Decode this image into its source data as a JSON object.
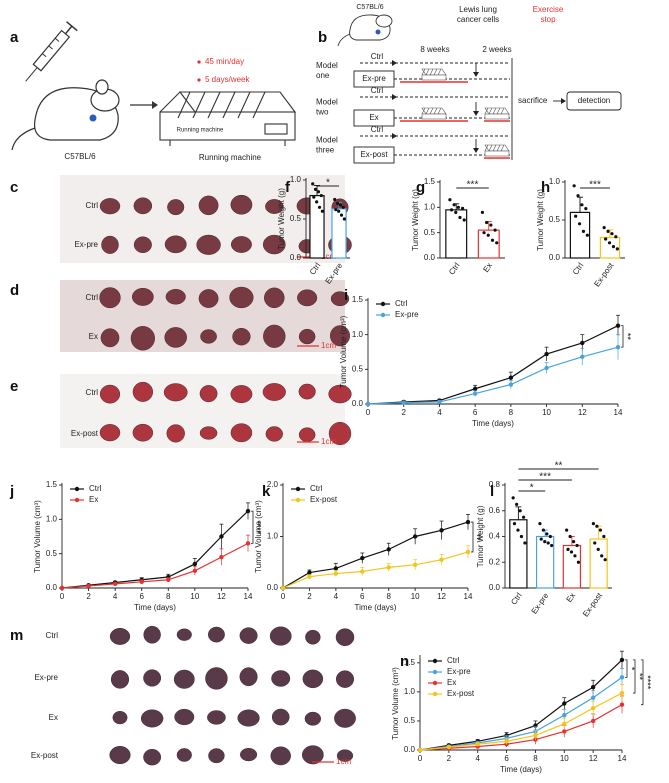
{
  "panel_a": {
    "letter": "a",
    "bullets": [
      "45 min/day",
      "5 days/week"
    ],
    "strain": "C57BL/6",
    "machine_label": "Running machine",
    "caption": "Running machine"
  },
  "panel_b": {
    "letter": "b",
    "strain": "C57BL/6",
    "injection": [
      "Lewis lung",
      "cancer cells"
    ],
    "stop": [
      "Exercise",
      "stop"
    ],
    "durations": [
      "8 weeks",
      "2 weeks"
    ],
    "models": [
      {
        "name": [
          "Model",
          "one"
        ],
        "control": "Ctrl",
        "group": "Ex-pre"
      },
      {
        "name": [
          "Model",
          "two"
        ],
        "control": "Ctrl",
        "group": "Ex"
      },
      {
        "name": [
          "Model",
          "three"
        ],
        "control": "Ctrl",
        "group": "Ex-post"
      }
    ],
    "end": "sacrifice",
    "result": "detection"
  },
  "photos": [
    {
      "letter": "c",
      "rows": [
        "Ctrl",
        "Ex-pre"
      ],
      "scale": "1cm"
    },
    {
      "letter": "d",
      "rows": [
        "Ctrl",
        "Ex"
      ],
      "scale": "1cm"
    },
    {
      "letter": "e",
      "rows": [
        "Ctrl",
        "Ex-post"
      ],
      "scale": "1cm"
    },
    {
      "letter": "m",
      "rows": [
        "Ctrl",
        "Ex-pre",
        "Ex",
        "Ex-post"
      ],
      "scale": "1cm"
    }
  ],
  "chart_data": [
    {
      "type": "bar",
      "letter": "f",
      "ylabel": "Tumor Weight (g)",
      "categories": [
        "Ctrl",
        "Ex-pre"
      ],
      "values": [
        0.8,
        0.63
      ],
      "errors": [
        0.13,
        0.08
      ],
      "colors": [
        "#111111",
        "#4aa3df"
      ],
      "points": [
        [
          0.95,
          0.88,
          0.85,
          0.8,
          0.78,
          0.72,
          0.65,
          0.6
        ],
        [
          0.75,
          0.7,
          0.68,
          0.65,
          0.62,
          0.6,
          0.55,
          0.5
        ]
      ],
      "ylim": [
        0,
        1.0
      ],
      "yticks": [
        {
          "value": 0,
          "label": "0.0"
        },
        {
          "value": 0.5,
          "label": "0.5"
        },
        {
          "value": 1,
          "label": "1.0"
        }
      ],
      "significance": [
        {
          "label": "*",
          "pair": [
            0,
            1
          ]
        }
      ]
    },
    {
      "type": "bar",
      "letter": "g",
      "ylabel": "Tumor Weight (g)",
      "categories": [
        "Ctrl",
        "Ex"
      ],
      "values": [
        0.95,
        0.55
      ],
      "errors": [
        0.12,
        0.17
      ],
      "colors": [
        "#111111",
        "#e8312f"
      ],
      "points": [
        [
          1.15,
          1.05,
          1.0,
          0.98,
          0.95,
          0.9,
          0.8,
          0.75
        ],
        [
          0.9,
          0.7,
          0.65,
          0.55,
          0.5,
          0.45,
          0.35,
          0.3
        ]
      ],
      "ylim": [
        0,
        1.5
      ],
      "yticks": [
        {
          "value": 0,
          "label": "0.0"
        },
        {
          "value": 0.5,
          "label": "0.5"
        },
        {
          "value": 1,
          "label": "1.0"
        },
        {
          "value": 1.5,
          "label": "1.5"
        }
      ],
      "significance": [
        {
          "label": "***",
          "pair": [
            0,
            1
          ]
        }
      ]
    },
    {
      "type": "bar",
      "letter": "h",
      "ylabel": "Tumor Weight (g)",
      "categories": [
        "Ctrl",
        "Ex-post"
      ],
      "values": [
        0.6,
        0.27
      ],
      "errors": [
        0.2,
        0.1
      ],
      "colors": [
        "#111111",
        "#f2c51c"
      ],
      "points": [
        [
          0.95,
          0.82,
          0.7,
          0.65,
          0.55,
          0.45,
          0.35,
          0.3
        ],
        [
          0.4,
          0.35,
          0.32,
          0.28,
          0.25,
          0.2,
          0.15,
          0.12
        ]
      ],
      "ylim": [
        0,
        1.0
      ],
      "yticks": [
        {
          "value": 0,
          "label": "0.0"
        },
        {
          "value": 0.5,
          "label": "0.5"
        },
        {
          "value": 1,
          "label": "1.0"
        }
      ],
      "significance": [
        {
          "label": "***",
          "pair": [
            0,
            1
          ]
        }
      ]
    },
    {
      "type": "line",
      "letter": "i",
      "ylabel": "Tumor Volume (cm³)",
      "xlabel": "Time (days)",
      "x": [
        0,
        2,
        4,
        6,
        8,
        10,
        12,
        14
      ],
      "series": [
        {
          "name": "Ctrl",
          "color": "#111111",
          "values": [
            0,
            0.03,
            0.05,
            0.22,
            0.38,
            0.72,
            0.88,
            1.13
          ],
          "errors": [
            0,
            0.02,
            0.02,
            0.05,
            0.08,
            0.1,
            0.12,
            0.15
          ]
        },
        {
          "name": "Ex-pre",
          "color": "#4aa3df",
          "values": [
            0,
            0.02,
            0.03,
            0.15,
            0.28,
            0.52,
            0.68,
            0.82
          ],
          "errors": [
            0,
            0.01,
            0.02,
            0.04,
            0.06,
            0.08,
            0.12,
            0.18
          ]
        }
      ],
      "xlim": [
        0,
        14
      ],
      "xticks": [
        0,
        2,
        4,
        6,
        8,
        10,
        12,
        14
      ],
      "ylim": [
        0,
        1.5
      ],
      "yticks": [
        {
          "value": 0,
          "label": "0.0"
        },
        {
          "value": 0.5,
          "label": "0.5"
        },
        {
          "value": 1,
          "label": "1.0"
        },
        {
          "value": 1.5,
          "label": "1.5"
        }
      ],
      "legend": "upper left",
      "significance": [
        {
          "label": "**",
          "pair": [
            0,
            1
          ]
        }
      ]
    },
    {
      "type": "line",
      "letter": "j",
      "ylabel": "Tumor Volume (cm³)",
      "xlabel": "Time (days)",
      "x": [
        0,
        2,
        4,
        6,
        8,
        10,
        12,
        14
      ],
      "series": [
        {
          "name": "Ctrl",
          "color": "#111111",
          "values": [
            0,
            0.04,
            0.08,
            0.12,
            0.16,
            0.35,
            0.75,
            1.12
          ],
          "errors": [
            0,
            0.01,
            0.02,
            0.03,
            0.04,
            0.08,
            0.18,
            0.12
          ]
        },
        {
          "name": "Ex",
          "color": "#e8312f",
          "values": [
            0,
            0.03,
            0.06,
            0.09,
            0.12,
            0.25,
            0.45,
            0.65
          ],
          "errors": [
            0,
            0.01,
            0.02,
            0.03,
            0.03,
            0.06,
            0.12,
            0.12
          ]
        }
      ],
      "xlim": [
        0,
        14
      ],
      "xticks": [
        0,
        2,
        4,
        6,
        8,
        10,
        12,
        14
      ],
      "ylim": [
        0,
        1.5
      ],
      "yticks": [
        {
          "value": 0,
          "label": "0.0"
        },
        {
          "value": 0.5,
          "label": "0.5"
        },
        {
          "value": 1,
          "label": "1.0"
        },
        {
          "value": 1.5,
          "label": "1.5"
        }
      ],
      "legend": "upper left",
      "significance": [
        {
          "label": "****",
          "pair": [
            0,
            1
          ]
        }
      ]
    },
    {
      "type": "line",
      "letter": "k",
      "ylabel": "Tumor Volume (cm³)",
      "xlabel": "Time (days)",
      "x": [
        0,
        2,
        4,
        6,
        8,
        10,
        12,
        14
      ],
      "series": [
        {
          "name": "Ctrl",
          "color": "#111111",
          "values": [
            0,
            0.3,
            0.38,
            0.58,
            0.75,
            1.0,
            1.12,
            1.28
          ],
          "errors": [
            0,
            0.05,
            0.1,
            0.1,
            0.12,
            0.15,
            0.18,
            0.15
          ]
        },
        {
          "name": "Ex-post",
          "color": "#f2c51c",
          "values": [
            0,
            0.22,
            0.28,
            0.32,
            0.4,
            0.45,
            0.55,
            0.7
          ],
          "errors": [
            0,
            0.04,
            0.06,
            0.08,
            0.08,
            0.1,
            0.1,
            0.12
          ]
        }
      ],
      "xlim": [
        0,
        14
      ],
      "xticks": [
        0,
        2,
        4,
        6,
        8,
        10,
        12,
        14
      ],
      "ylim": [
        0,
        2.0
      ],
      "yticks": [
        {
          "value": 0,
          "label": "0.0"
        },
        {
          "value": 1,
          "label": "1.0"
        },
        {
          "value": 2,
          "label": "2.0"
        }
      ],
      "legend": "upper left",
      "significance": [
        {
          "label": "**",
          "pair": [
            0,
            1
          ]
        }
      ]
    },
    {
      "type": "bar",
      "letter": "l",
      "ylabel": "Tumor Weight (g)",
      "categories": [
        "Ctrl",
        "Ex-pre",
        "Ex",
        "Ex-post"
      ],
      "values": [
        0.53,
        0.4,
        0.33,
        0.38
      ],
      "errors": [
        0.1,
        0.05,
        0.07,
        0.1
      ],
      "colors": [
        "#111111",
        "#4aa3df",
        "#e8312f",
        "#f2c51c"
      ],
      "points": [
        [
          0.7,
          0.65,
          0.6,
          0.55,
          0.5,
          0.45,
          0.4,
          0.35
        ],
        [
          0.5,
          0.45,
          0.42,
          0.4,
          0.38,
          0.36,
          0.35,
          0.33
        ],
        [
          0.45,
          0.4,
          0.36,
          0.33,
          0.3,
          0.28,
          0.25,
          0.2
        ],
        [
          0.5,
          0.48,
          0.45,
          0.4,
          0.35,
          0.3,
          0.25,
          0.22
        ]
      ],
      "ylim": [
        0,
        0.8
      ],
      "yticks": [
        {
          "value": 0,
          "label": "0.0"
        },
        {
          "value": 0.2,
          "label": "0.2"
        },
        {
          "value": 0.4,
          "label": "0.4"
        },
        {
          "value": 0.6,
          "label": "0.6"
        },
        {
          "value": 0.8,
          "label": "0.8"
        }
      ],
      "significance": [
        {
          "label": "*",
          "pair": [
            0,
            1
          ]
        },
        {
          "label": "***",
          "pair": [
            0,
            2
          ]
        },
        {
          "label": "**",
          "pair": [
            0,
            3
          ]
        }
      ]
    },
    {
      "type": "line",
      "letter": "n",
      "ylabel": "Tumor Volume (cm³)",
      "xlabel": "Time (days)",
      "x": [
        0,
        2,
        4,
        6,
        8,
        10,
        12,
        14
      ],
      "series": [
        {
          "name": "Ctrl",
          "color": "#111111",
          "values": [
            0,
            0.08,
            0.15,
            0.25,
            0.42,
            0.8,
            1.08,
            1.55
          ],
          "errors": [
            0,
            0.02,
            0.03,
            0.05,
            0.08,
            0.1,
            0.12,
            0.15
          ]
        },
        {
          "name": "Ex-pre",
          "color": "#4aa3df",
          "values": [
            0,
            0.06,
            0.12,
            0.2,
            0.32,
            0.6,
            0.9,
            1.25
          ],
          "errors": [
            0,
            0.02,
            0.03,
            0.05,
            0.08,
            0.1,
            0.12,
            0.15
          ]
        },
        {
          "name": "Ex",
          "color": "#e8312f",
          "values": [
            0,
            0.03,
            0.06,
            0.1,
            0.18,
            0.32,
            0.5,
            0.78
          ],
          "errors": [
            0,
            0.02,
            0.03,
            0.05,
            0.08,
            0.1,
            0.12,
            0.15
          ]
        },
        {
          "name": "Ex-post",
          "color": "#f2c51c",
          "values": [
            0,
            0.05,
            0.1,
            0.15,
            0.25,
            0.45,
            0.72,
            0.98
          ],
          "errors": [
            0,
            0.02,
            0.03,
            0.05,
            0.08,
            0.1,
            0.12,
            0.15
          ]
        }
      ],
      "xlim": [
        0,
        14
      ],
      "xticks": [
        0,
        2,
        4,
        6,
        8,
        10,
        12,
        14
      ],
      "ylim": [
        0,
        1.6
      ],
      "yticks": [
        {
          "value": 0,
          "label": "0.0"
        },
        {
          "value": 0.5,
          "label": "0.5"
        },
        {
          "value": 1,
          "label": "1.0"
        },
        {
          "value": 1.5,
          "label": "1.5"
        }
      ],
      "legend": "upper left",
      "significance": [
        {
          "label": "*",
          "pair": [
            0,
            1
          ]
        },
        {
          "label": "**",
          "pair": [
            0,
            3
          ]
        },
        {
          "label": "****",
          "pair": [
            0,
            2
          ]
        }
      ]
    }
  ]
}
